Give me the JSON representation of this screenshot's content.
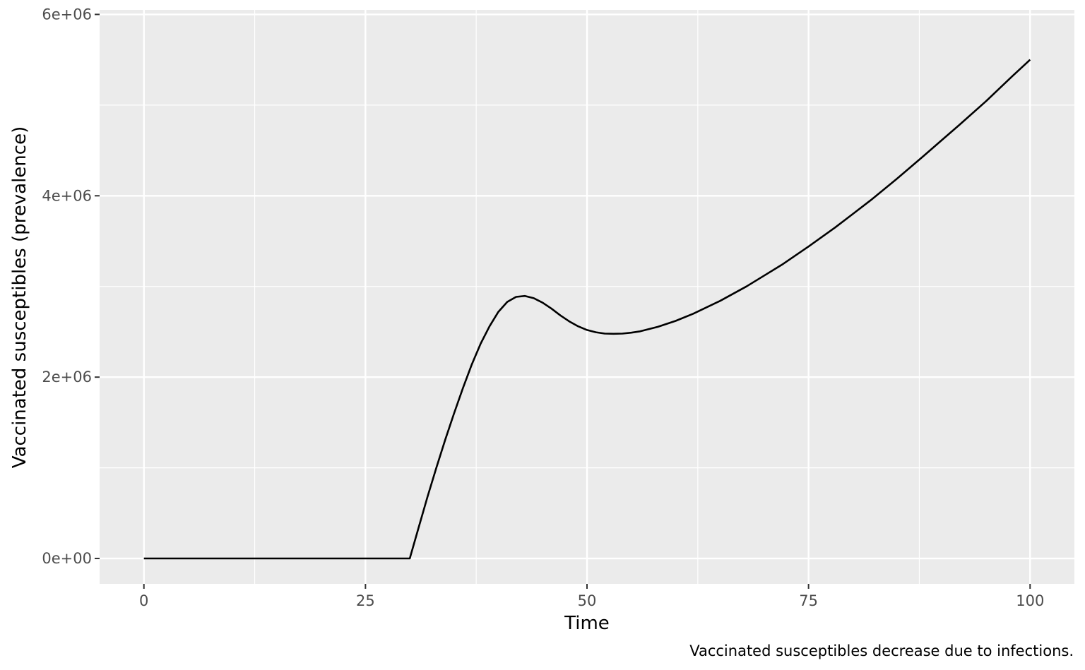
{
  "chart_data": {
    "type": "line",
    "title": "",
    "xlabel": "Time",
    "ylabel": "Vaccinated susceptibles (prevalence)",
    "caption": "Vaccinated susceptibles decrease due to infections.",
    "xlim": [
      -5,
      105
    ],
    "ylim": [
      -280000,
      6050000
    ],
    "x_ticks": [
      0,
      25,
      50,
      75,
      100
    ],
    "x_tick_labels": [
      "0",
      "25",
      "50",
      "75",
      "100"
    ],
    "x_minor_ticks": [
      12.5,
      37.5,
      62.5,
      87.5
    ],
    "y_ticks": [
      0,
      2000000,
      4000000,
      6000000
    ],
    "y_tick_labels": [
      "0e+00",
      "2e+06",
      "4e+06",
      "6e+06"
    ],
    "y_minor_ticks": [
      1000000,
      3000000,
      5000000
    ],
    "grid": true,
    "colors": {
      "panel": "#ebebeb",
      "grid": "#ffffff",
      "line": "#000000",
      "tick": "#333333"
    },
    "series": [
      {
        "x": [
          0,
          10,
          20,
          30,
          31,
          32,
          33,
          34,
          35,
          36,
          37,
          38,
          39,
          40,
          41,
          42,
          43,
          44,
          45,
          46,
          47,
          48,
          49,
          50,
          51,
          52,
          53,
          54,
          55,
          56,
          58,
          60,
          62,
          65,
          68,
          70,
          72,
          75,
          78,
          80,
          82,
          85,
          88,
          90,
          92,
          95,
          98,
          100
        ],
        "values": [
          0,
          0,
          0,
          0,
          340000,
          680000,
          1000000,
          1310000,
          1600000,
          1880000,
          2140000,
          2370000,
          2560000,
          2720000,
          2830000,
          2885000,
          2895000,
          2870000,
          2820000,
          2755000,
          2680000,
          2615000,
          2560000,
          2520000,
          2495000,
          2480000,
          2478000,
          2480000,
          2490000,
          2505000,
          2555000,
          2620000,
          2700000,
          2840000,
          3000000,
          3120000,
          3240000,
          3440000,
          3650000,
          3800000,
          3950000,
          4190000,
          4440000,
          4610000,
          4780000,
          5040000,
          5320000,
          5500000
        ]
      }
    ]
  }
}
